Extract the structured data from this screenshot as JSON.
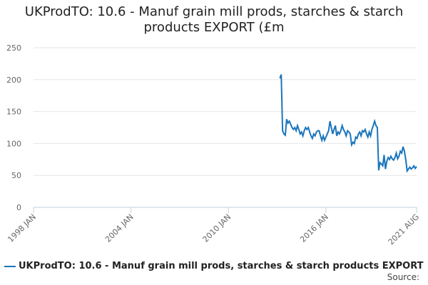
{
  "chart_data": {
    "type": "line",
    "title": "UKProdTO: 10.6 - Manuf grain mill prods, starches & starch products EXPORT (£m",
    "source": "Source:",
    "x": [
      "2013 MAR",
      "2013 APR",
      "2013 MAY",
      "2013 JUN",
      "2013 JUL",
      "2013 AUG",
      "2013 SEP",
      "2013 OCT",
      "2013 NOV",
      "2013 DEC",
      "2014 JAN",
      "2014 FEB",
      "2014 MAR",
      "2014 APR",
      "2014 MAY",
      "2014 JUN",
      "2014 JUL",
      "2014 AUG",
      "2014 SEP",
      "2014 OCT",
      "2014 NOV",
      "2014 DEC",
      "2015 JAN",
      "2015 FEB",
      "2015 MAR",
      "2015 APR",
      "2015 MAY",
      "2015 JUN",
      "2015 JUL",
      "2015 AUG",
      "2015 SEP",
      "2015 OCT",
      "2015 NOV",
      "2015 DEC",
      "2016 JAN",
      "2016 FEB",
      "2016 MAR",
      "2016 APR",
      "2016 MAY",
      "2016 JUN",
      "2016 JUL",
      "2016 AUG",
      "2016 SEP",
      "2016 OCT",
      "2016 NOV",
      "2016 DEC",
      "2017 JAN",
      "2017 FEB",
      "2017 MAR",
      "2017 APR",
      "2017 MAY",
      "2017 JUN",
      "2017 JUL",
      "2017 AUG",
      "2017 SEP",
      "2017 OCT",
      "2017 NOV",
      "2017 DEC",
      "2018 JAN",
      "2018 FEB",
      "2018 MAR",
      "2018 APR",
      "2018 MAY",
      "2018 JUN",
      "2018 JUL",
      "2018 AUG",
      "2018 SEP",
      "2018 OCT",
      "2018 NOV",
      "2018 DEC",
      "2019 JAN",
      "2019 FEB",
      "2019 MAR",
      "2019 APR",
      "2019 MAY",
      "2019 JUN",
      "2019 JUL",
      "2019 AUG",
      "2019 SEP",
      "2019 OCT",
      "2019 NOV",
      "2019 DEC",
      "2020 JAN",
      "2020 FEB",
      "2020 MAR",
      "2020 APR",
      "2020 MAY",
      "2020 JUN",
      "2020 JUL",
      "2020 AUG",
      "2020 SEP",
      "2020 OCT",
      "2020 NOV",
      "2020 DEC",
      "2021 JAN",
      "2021 FEB",
      "2021 MAR",
      "2021 APR",
      "2021 MAY",
      "2021 JUN",
      "2021 JUL",
      "2021 AUG"
    ],
    "series": [
      {
        "name": "UKProdTO: 10.6 - Manuf grain mill prods, starches & starch products EXPORT (£m",
        "color": "#1a75bc",
        "values": [
          202,
          208,
          120,
          115,
          113,
          138,
          132,
          135,
          130,
          125,
          122,
          125,
          120,
          128,
          122,
          115,
          118,
          112,
          120,
          125,
          122,
          125,
          118,
          112,
          108,
          115,
          112,
          118,
          120,
          120,
          112,
          105,
          112,
          105,
          110,
          115,
          120,
          135,
          125,
          115,
          122,
          128,
          112,
          118,
          115,
          120,
          128,
          122,
          118,
          112,
          120,
          118,
          115,
          98,
          102,
          100,
          110,
          108,
          115,
          118,
          112,
          120,
          118,
          122,
          115,
          110,
          118,
          112,
          122,
          128,
          135,
          128,
          125,
          58,
          70,
          68,
          65,
          82,
          60,
          72,
          78,
          75,
          80,
          76,
          74,
          78,
          85,
          76,
          80,
          88,
          85,
          95,
          88,
          75,
          57,
          60,
          63,
          60,
          62,
          65,
          61,
          64
        ]
      }
    ],
    "xlim": [
      "1998 JAN",
      "2021 AUG"
    ],
    "xticks": [
      "1998 JAN",
      "2004 JAN",
      "2010 JAN",
      "2016 JAN",
      "2021 AUG"
    ],
    "ylim": [
      0,
      250
    ],
    "yticks": [
      0,
      50,
      100,
      150,
      200,
      250
    ],
    "grid": true
  }
}
